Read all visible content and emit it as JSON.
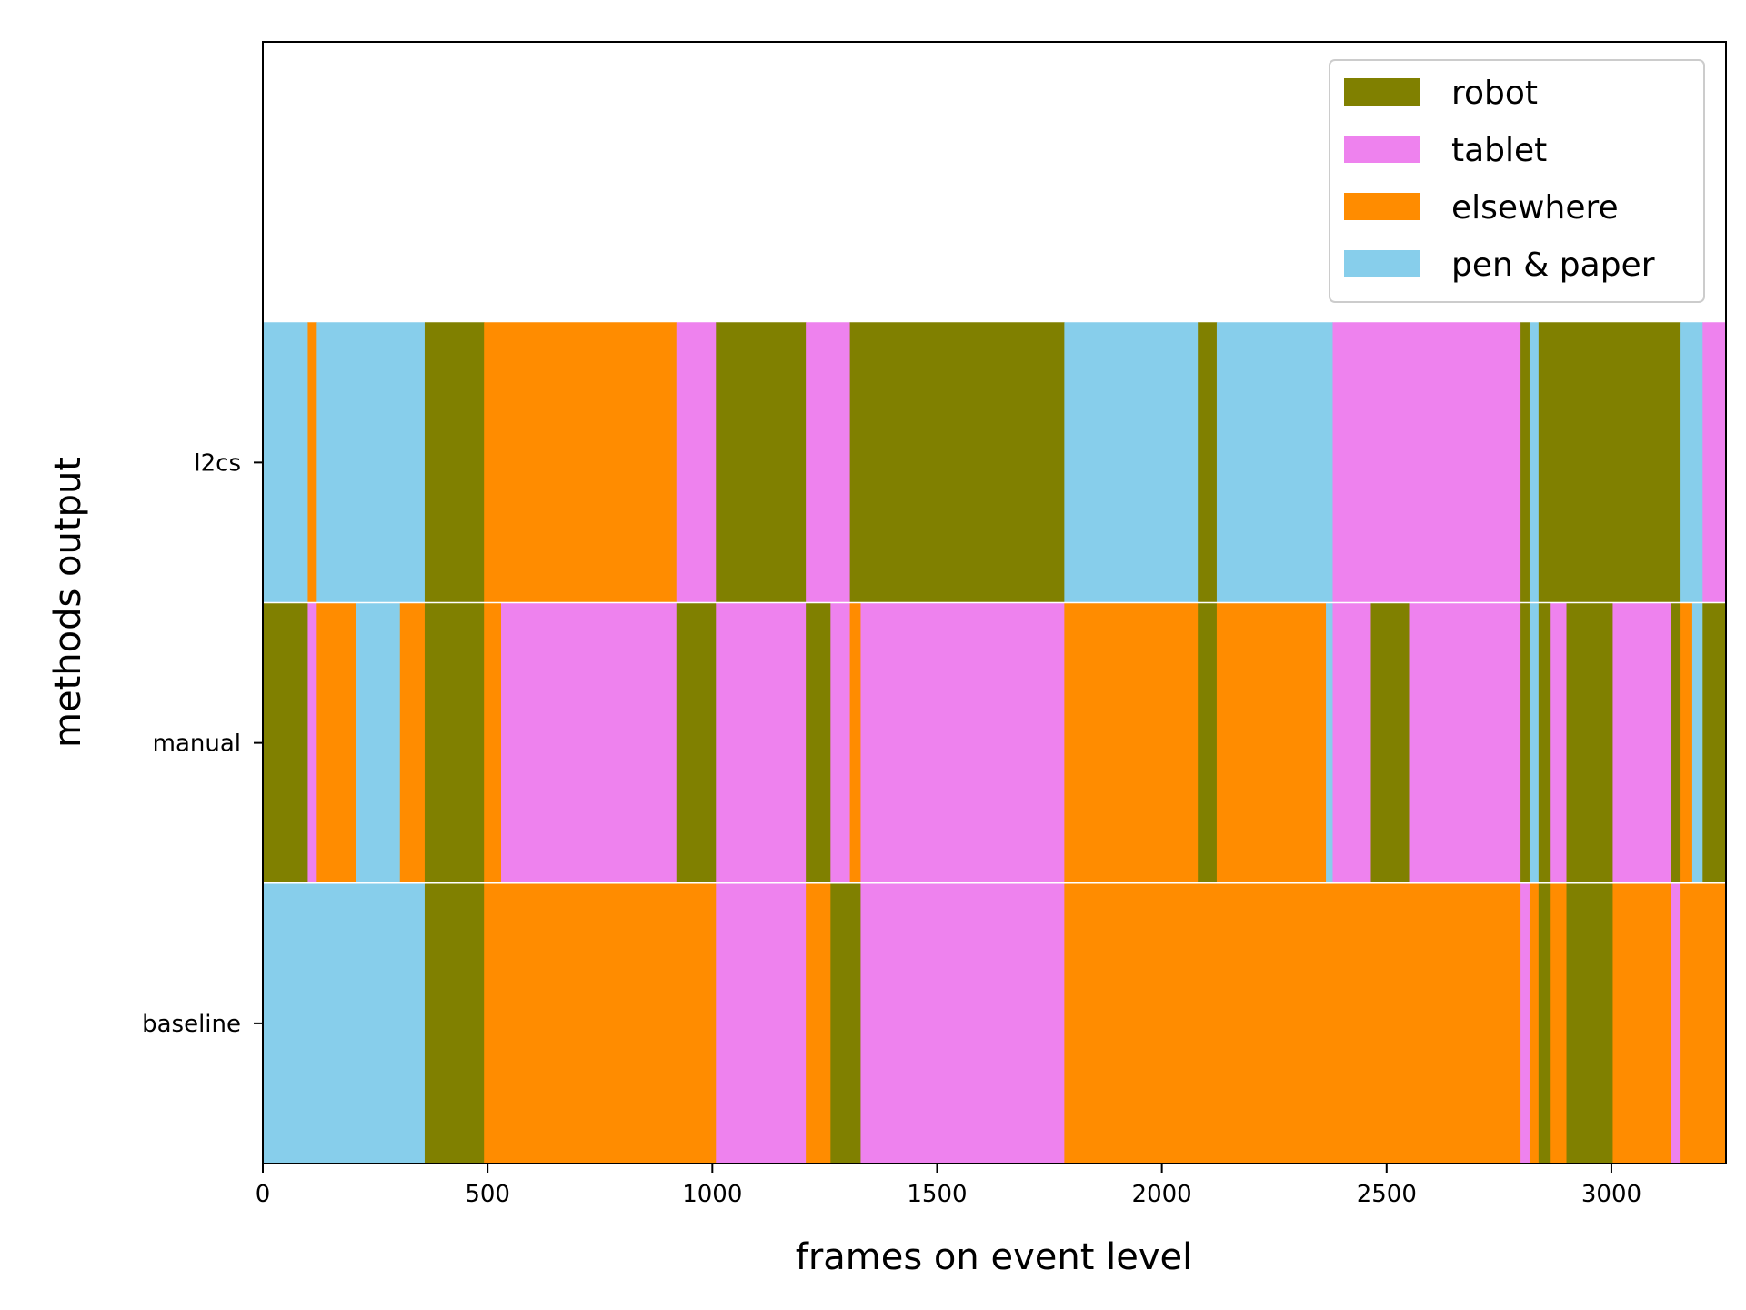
{
  "chart_data": {
    "type": "bar",
    "orientation": "horizontal-stacked-timeline",
    "xlabel": "frames on event level",
    "ylabel": "methods output",
    "xlim": [
      0,
      3255
    ],
    "x_ticks": [
      0,
      500,
      1000,
      1500,
      2000,
      2500,
      3000
    ],
    "x_tick_labels": [
      "0",
      "500",
      "1000",
      "1500",
      "2000",
      "2500",
      "3000"
    ],
    "ylim": [
      -0.5,
      3.5
    ],
    "rows": [
      "baseline",
      "manual",
      "l2cs"
    ],
    "categories": [
      {
        "name": "robot",
        "color": "#808000"
      },
      {
        "name": "tablet",
        "color": "#EE82EE"
      },
      {
        "name": "elsewhere",
        "color": "#FF8C00"
      },
      {
        "name": "pen & paper",
        "color": "#87CEEB"
      }
    ],
    "legend_position": "upper right",
    "series": [
      {
        "row": "l2cs",
        "segments": [
          {
            "start": 0,
            "end": 100,
            "category": "pen & paper"
          },
          {
            "start": 100,
            "end": 120,
            "category": "elsewhere"
          },
          {
            "start": 120,
            "end": 360,
            "category": "pen & paper"
          },
          {
            "start": 360,
            "end": 492,
            "category": "robot"
          },
          {
            "start": 492,
            "end": 920,
            "category": "elsewhere"
          },
          {
            "start": 920,
            "end": 1008,
            "category": "tablet"
          },
          {
            "start": 1008,
            "end": 1208,
            "category": "robot"
          },
          {
            "start": 1208,
            "end": 1306,
            "category": "tablet"
          },
          {
            "start": 1306,
            "end": 1783,
            "category": "robot"
          },
          {
            "start": 1783,
            "end": 2080,
            "category": "pen & paper"
          },
          {
            "start": 2080,
            "end": 2122,
            "category": "robot"
          },
          {
            "start": 2122,
            "end": 2380,
            "category": "pen & paper"
          },
          {
            "start": 2380,
            "end": 2798,
            "category": "tablet"
          },
          {
            "start": 2798,
            "end": 2818,
            "category": "robot"
          },
          {
            "start": 2818,
            "end": 2838,
            "category": "pen & paper"
          },
          {
            "start": 2838,
            "end": 3152,
            "category": "robot"
          },
          {
            "start": 3152,
            "end": 3203,
            "category": "pen & paper"
          },
          {
            "start": 3203,
            "end": 3255,
            "category": "tablet"
          }
        ]
      },
      {
        "row": "manual",
        "segments": [
          {
            "start": 0,
            "end": 100,
            "category": "robot"
          },
          {
            "start": 100,
            "end": 120,
            "category": "tablet"
          },
          {
            "start": 120,
            "end": 208,
            "category": "elsewhere"
          },
          {
            "start": 208,
            "end": 305,
            "category": "pen & paper"
          },
          {
            "start": 305,
            "end": 360,
            "category": "elsewhere"
          },
          {
            "start": 360,
            "end": 492,
            "category": "robot"
          },
          {
            "start": 492,
            "end": 530,
            "category": "elsewhere"
          },
          {
            "start": 530,
            "end": 920,
            "category": "tablet"
          },
          {
            "start": 920,
            "end": 1008,
            "category": "robot"
          },
          {
            "start": 1008,
            "end": 1208,
            "category": "tablet"
          },
          {
            "start": 1208,
            "end": 1263,
            "category": "robot"
          },
          {
            "start": 1263,
            "end": 1306,
            "category": "tablet"
          },
          {
            "start": 1306,
            "end": 1330,
            "category": "elsewhere"
          },
          {
            "start": 1330,
            "end": 1783,
            "category": "tablet"
          },
          {
            "start": 1783,
            "end": 2080,
            "category": "elsewhere"
          },
          {
            "start": 2080,
            "end": 2122,
            "category": "robot"
          },
          {
            "start": 2122,
            "end": 2365,
            "category": "elsewhere"
          },
          {
            "start": 2365,
            "end": 2380,
            "category": "pen & paper"
          },
          {
            "start": 2380,
            "end": 2465,
            "category": "tablet"
          },
          {
            "start": 2465,
            "end": 2550,
            "category": "robot"
          },
          {
            "start": 2550,
            "end": 2798,
            "category": "tablet"
          },
          {
            "start": 2798,
            "end": 2818,
            "category": "robot"
          },
          {
            "start": 2818,
            "end": 2838,
            "category": "pen & paper"
          },
          {
            "start": 2838,
            "end": 2865,
            "category": "robot"
          },
          {
            "start": 2865,
            "end": 2900,
            "category": "tablet"
          },
          {
            "start": 2900,
            "end": 3003,
            "category": "robot"
          },
          {
            "start": 3003,
            "end": 3132,
            "category": "tablet"
          },
          {
            "start": 3132,
            "end": 3152,
            "category": "robot"
          },
          {
            "start": 3152,
            "end": 3180,
            "category": "elsewhere"
          },
          {
            "start": 3180,
            "end": 3203,
            "category": "pen & paper"
          },
          {
            "start": 3203,
            "end": 3255,
            "category": "robot"
          }
        ]
      },
      {
        "row": "baseline",
        "segments": [
          {
            "start": 0,
            "end": 360,
            "category": "pen & paper"
          },
          {
            "start": 360,
            "end": 492,
            "category": "robot"
          },
          {
            "start": 492,
            "end": 1008,
            "category": "elsewhere"
          },
          {
            "start": 1008,
            "end": 1208,
            "category": "tablet"
          },
          {
            "start": 1208,
            "end": 1263,
            "category": "elsewhere"
          },
          {
            "start": 1263,
            "end": 1330,
            "category": "robot"
          },
          {
            "start": 1330,
            "end": 1783,
            "category": "tablet"
          },
          {
            "start": 1783,
            "end": 2798,
            "category": "elsewhere"
          },
          {
            "start": 2798,
            "end": 2818,
            "category": "tablet"
          },
          {
            "start": 2818,
            "end": 2838,
            "category": "elsewhere"
          },
          {
            "start": 2838,
            "end": 2865,
            "category": "robot"
          },
          {
            "start": 2865,
            "end": 2900,
            "category": "elsewhere"
          },
          {
            "start": 2900,
            "end": 3003,
            "category": "robot"
          },
          {
            "start": 3003,
            "end": 3132,
            "category": "elsewhere"
          },
          {
            "start": 3132,
            "end": 3152,
            "category": "tablet"
          },
          {
            "start": 3152,
            "end": 3255,
            "category": "elsewhere"
          }
        ]
      }
    ]
  }
}
